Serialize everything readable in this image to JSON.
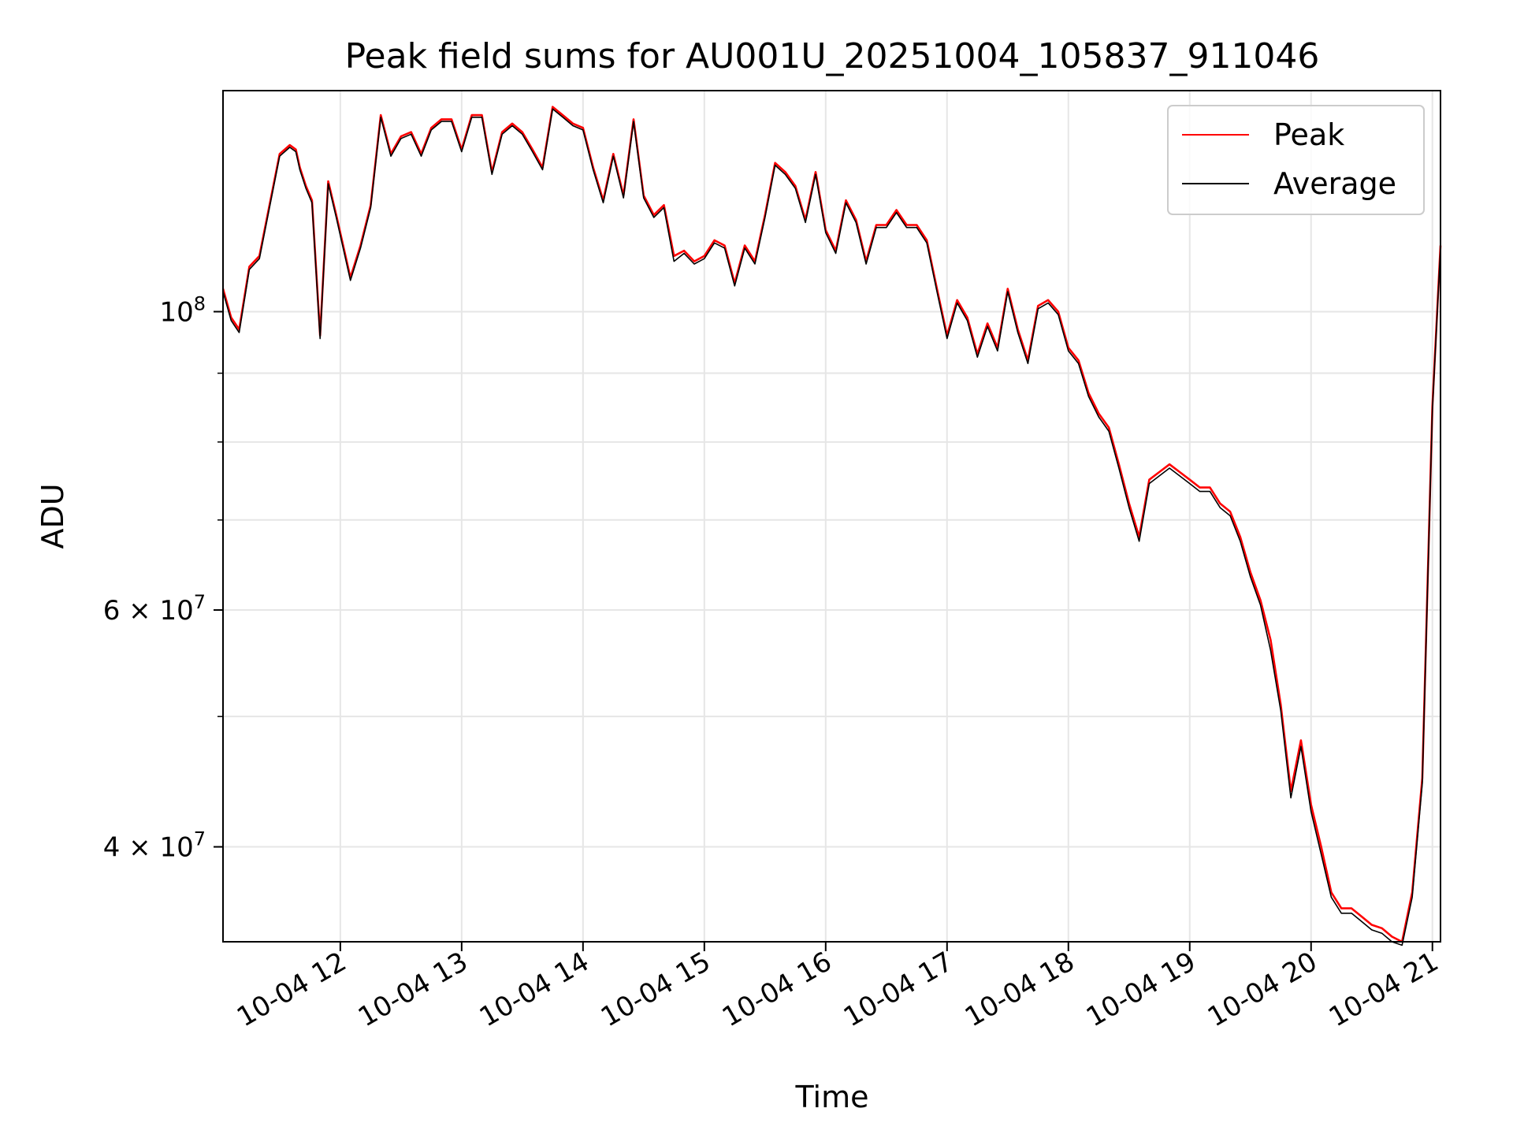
{
  "chart_data": {
    "type": "line",
    "title": "Peak field sums for AU001U_20251004_105837_911046",
    "xlabel": "Time",
    "ylabel": "ADU",
    "yscale": "log",
    "xlim": [
      "2025-10-04 11:02",
      "2025-10-04 21:04"
    ],
    "ylim": [
      34000000,
      146000000
    ],
    "x_tick_labels": [
      "10-04 12",
      "10-04 13",
      "10-04 14",
      "10-04 15",
      "10-04 16",
      "10-04 17",
      "10-04 18",
      "10-04 19",
      "10-04 20",
      "10-04 21"
    ],
    "y_tick_labels": [
      {
        "value": 100000000,
        "label": "10",
        "exponent": "8"
      },
      {
        "value": 60000000,
        "label": "6 × 10",
        "exponent": "7"
      },
      {
        "value": 40000000,
        "label": "4 × 10",
        "exponent": "7"
      }
    ],
    "grid": true,
    "legend_position": "upper right",
    "series": [
      {
        "name": "Peak",
        "color": "#ff0000",
        "x": [
          "2025-10-04 11:02",
          "2025-10-04 11:06",
          "2025-10-04 11:10",
          "2025-10-04 11:15",
          "2025-10-04 11:20",
          "2025-10-04 11:25",
          "2025-10-04 11:30",
          "2025-10-04 11:35",
          "2025-10-04 11:38",
          "2025-10-04 11:40",
          "2025-10-04 11:43",
          "2025-10-04 11:46",
          "2025-10-04 11:50",
          "2025-10-04 11:54",
          "2025-10-04 11:58",
          "2025-10-04 12:05",
          "2025-10-04 12:10",
          "2025-10-04 12:15",
          "2025-10-04 12:20",
          "2025-10-04 12:25",
          "2025-10-04 12:30",
          "2025-10-04 12:35",
          "2025-10-04 12:40",
          "2025-10-04 12:45",
          "2025-10-04 12:50",
          "2025-10-04 12:55",
          "2025-10-04 13:00",
          "2025-10-04 13:05",
          "2025-10-04 13:10",
          "2025-10-04 13:15",
          "2025-10-04 13:20",
          "2025-10-04 13:25",
          "2025-10-04 13:30",
          "2025-10-04 13:35",
          "2025-10-04 13:40",
          "2025-10-04 13:45",
          "2025-10-04 13:50",
          "2025-10-04 13:55",
          "2025-10-04 14:00",
          "2025-10-04 14:05",
          "2025-10-04 14:10",
          "2025-10-04 14:15",
          "2025-10-04 14:20",
          "2025-10-04 14:25",
          "2025-10-04 14:30",
          "2025-10-04 14:35",
          "2025-10-04 14:40",
          "2025-10-04 14:45",
          "2025-10-04 14:50",
          "2025-10-04 14:55",
          "2025-10-04 15:00",
          "2025-10-04 15:05",
          "2025-10-04 15:10",
          "2025-10-04 15:15",
          "2025-10-04 15:20",
          "2025-10-04 15:25",
          "2025-10-04 15:30",
          "2025-10-04 15:35",
          "2025-10-04 15:40",
          "2025-10-04 15:45",
          "2025-10-04 15:50",
          "2025-10-04 15:55",
          "2025-10-04 16:00",
          "2025-10-04 16:05",
          "2025-10-04 16:10",
          "2025-10-04 16:15",
          "2025-10-04 16:20",
          "2025-10-04 16:25",
          "2025-10-04 16:30",
          "2025-10-04 16:35",
          "2025-10-04 16:40",
          "2025-10-04 16:45",
          "2025-10-04 16:50",
          "2025-10-04 16:55",
          "2025-10-04 17:00",
          "2025-10-04 17:05",
          "2025-10-04 17:10",
          "2025-10-04 17:15",
          "2025-10-04 17:20",
          "2025-10-04 17:25",
          "2025-10-04 17:30",
          "2025-10-04 17:35",
          "2025-10-04 17:40",
          "2025-10-04 17:45",
          "2025-10-04 17:50",
          "2025-10-04 17:55",
          "2025-10-04 18:00",
          "2025-10-04 18:05",
          "2025-10-04 18:10",
          "2025-10-04 18:15",
          "2025-10-04 18:20",
          "2025-10-04 18:25",
          "2025-10-04 18:30",
          "2025-10-04 18:35",
          "2025-10-04 18:40",
          "2025-10-04 18:45",
          "2025-10-04 18:50",
          "2025-10-04 18:55",
          "2025-10-04 19:00",
          "2025-10-04 19:05",
          "2025-10-04 19:10",
          "2025-10-04 19:15",
          "2025-10-04 19:20",
          "2025-10-04 19:25",
          "2025-10-04 19:30",
          "2025-10-04 19:35",
          "2025-10-04 19:40",
          "2025-10-04 19:45",
          "2025-10-04 19:50",
          "2025-10-04 19:55",
          "2025-10-04 20:00",
          "2025-10-04 20:05",
          "2025-10-04 20:10",
          "2025-10-04 20:15",
          "2025-10-04 20:20",
          "2025-10-04 20:25",
          "2025-10-04 20:30",
          "2025-10-04 20:35",
          "2025-10-04 20:40",
          "2025-10-04 20:45",
          "2025-10-04 20:50",
          "2025-10-04 20:55",
          "2025-10-04 21:00",
          "2025-10-04 21:04"
        ],
        "values": [
          104000000,
          99000000,
          97000000,
          108000000,
          110000000,
          120000000,
          131000000,
          133000000,
          132000000,
          128000000,
          124000000,
          121000000,
          96000000,
          125000000,
          118000000,
          106000000,
          112000000,
          120000000,
          140000000,
          131000000,
          135000000,
          136000000,
          131000000,
          137000000,
          139000000,
          139000000,
          132000000,
          140000000,
          140000000,
          127000000,
          136000000,
          138000000,
          136000000,
          132000000,
          128000000,
          142000000,
          140000000,
          138000000,
          137000000,
          128000000,
          121000000,
          131000000,
          122000000,
          139000000,
          122000000,
          118000000,
          120000000,
          110000000,
          111000000,
          109000000,
          110000000,
          113000000,
          112000000,
          105000000,
          112000000,
          109000000,
          118000000,
          129000000,
          127000000,
          124000000,
          117000000,
          127000000,
          115000000,
          111000000,
          121000000,
          117000000,
          109000000,
          116000000,
          116000000,
          119000000,
          116000000,
          116000000,
          113000000,
          104000000,
          96000000,
          102000000,
          99000000,
          93000000,
          98000000,
          94000000,
          104000000,
          97000000,
          92000000,
          101000000,
          102000000,
          100000000,
          94000000,
          92000000,
          87000000,
          84000000,
          82000000,
          77000000,
          72000000,
          68000000,
          75000000,
          76000000,
          77000000,
          76000000,
          75000000,
          74000000,
          74000000,
          72000000,
          71000000,
          68000000,
          64000000,
          61000000,
          57000000,
          51000000,
          44000000,
          48000000,
          43000000,
          40000000,
          37000000,
          36000000,
          36000000,
          35500000,
          35000000,
          34800000,
          34300000,
          34000000,
          37000000,
          45000000,
          85000000,
          112000000
        ],
        "note_omit": null
      },
      {
        "name": "Average",
        "color": "#000000",
        "x": [
          "2025-10-04 11:02",
          "2025-10-04 11:06",
          "2025-10-04 11:10",
          "2025-10-04 11:15",
          "2025-10-04 11:20",
          "2025-10-04 11:25",
          "2025-10-04 11:30",
          "2025-10-04 11:35",
          "2025-10-04 11:38",
          "2025-10-04 11:40",
          "2025-10-04 11:43",
          "2025-10-04 11:46",
          "2025-10-04 11:50",
          "2025-10-04 11:54",
          "2025-10-04 11:58",
          "2025-10-04 12:05",
          "2025-10-04 12:10",
          "2025-10-04 12:15",
          "2025-10-04 12:20",
          "2025-10-04 12:25",
          "2025-10-04 12:30",
          "2025-10-04 12:35",
          "2025-10-04 12:40",
          "2025-10-04 12:45",
          "2025-10-04 12:50",
          "2025-10-04 12:55",
          "2025-10-04 13:00",
          "2025-10-04 13:05",
          "2025-10-04 13:10",
          "2025-10-04 13:15",
          "2025-10-04 13:20",
          "2025-10-04 13:25",
          "2025-10-04 13:30",
          "2025-10-04 13:35",
          "2025-10-04 13:40",
          "2025-10-04 13:45",
          "2025-10-04 13:50",
          "2025-10-04 13:55",
          "2025-10-04 14:00",
          "2025-10-04 14:05",
          "2025-10-04 14:10",
          "2025-10-04 14:15",
          "2025-10-04 14:20",
          "2025-10-04 14:25",
          "2025-10-04 14:30",
          "2025-10-04 14:35",
          "2025-10-04 14:40",
          "2025-10-04 14:45",
          "2025-10-04 14:50",
          "2025-10-04 14:55",
          "2025-10-04 15:00",
          "2025-10-04 15:05",
          "2025-10-04 15:10",
          "2025-10-04 15:15",
          "2025-10-04 15:20",
          "2025-10-04 15:25",
          "2025-10-04 15:30",
          "2025-10-04 15:35",
          "2025-10-04 15:40",
          "2025-10-04 15:45",
          "2025-10-04 15:50",
          "2025-10-04 15:55",
          "2025-10-04 16:00",
          "2025-10-04 16:05",
          "2025-10-04 16:10",
          "2025-10-04 16:15",
          "2025-10-04 16:20",
          "2025-10-04 16:25",
          "2025-10-04 16:30",
          "2025-10-04 16:35",
          "2025-10-04 16:40",
          "2025-10-04 16:45",
          "2025-10-04 16:50",
          "2025-10-04 16:55",
          "2025-10-04 17:00",
          "2025-10-04 17:05",
          "2025-10-04 17:10",
          "2025-10-04 17:15",
          "2025-10-04 17:20",
          "2025-10-04 17:25",
          "2025-10-04 17:30",
          "2025-10-04 17:35",
          "2025-10-04 17:40",
          "2025-10-04 17:45",
          "2025-10-04 17:50",
          "2025-10-04 17:55",
          "2025-10-04 18:00",
          "2025-10-04 18:05",
          "2025-10-04 18:10",
          "2025-10-04 18:15",
          "2025-10-04 18:20",
          "2025-10-04 18:25",
          "2025-10-04 18:30",
          "2025-10-04 18:35",
          "2025-10-04 18:40",
          "2025-10-04 18:45",
          "2025-10-04 18:50",
          "2025-10-04 18:55",
          "2025-10-04 19:00",
          "2025-10-04 19:05",
          "2025-10-04 19:10",
          "2025-10-04 19:15",
          "2025-10-04 19:20",
          "2025-10-04 19:25",
          "2025-10-04 19:30",
          "2025-10-04 19:35",
          "2025-10-04 19:40",
          "2025-10-04 19:45",
          "2025-10-04 19:50",
          "2025-10-04 19:55",
          "2025-10-04 20:00",
          "2025-10-04 20:05",
          "2025-10-04 20:10",
          "2025-10-04 20:15",
          "2025-10-04 20:20",
          "2025-10-04 20:25",
          "2025-10-04 20:30",
          "2025-10-04 20:35",
          "2025-10-04 20:40",
          "2025-10-04 20:45",
          "2025-10-04 20:50",
          "2025-10-04 20:55",
          "2025-10-04 21:00",
          "2025-10-04 21:04"
        ],
        "values": [
          103500000,
          98500000,
          96500000,
          107500000,
          109500000,
          119500000,
          130500000,
          132500000,
          131500000,
          127500000,
          123500000,
          120500000,
          95500000,
          124500000,
          117500000,
          105500000,
          111500000,
          119500000,
          139500000,
          130500000,
          134500000,
          135500000,
          130500000,
          136500000,
          138500000,
          138500000,
          131500000,
          139500000,
          139500000,
          126500000,
          135500000,
          137500000,
          135500000,
          131500000,
          127500000,
          141500000,
          139500000,
          137500000,
          136500000,
          127500000,
          120500000,
          130500000,
          121500000,
          138500000,
          121500000,
          117500000,
          119500000,
          109000000,
          110500000,
          108500000,
          109500000,
          112500000,
          111500000,
          104500000,
          111500000,
          108500000,
          117500000,
          128500000,
          126500000,
          123500000,
          116500000,
          126500000,
          114500000,
          110500000,
          120500000,
          116500000,
          108500000,
          115500000,
          115500000,
          118500000,
          115500000,
          115500000,
          112500000,
          103500000,
          95500000,
          101500000,
          98500000,
          92500000,
          97500000,
          93500000,
          103500000,
          96500000,
          91500000,
          100500000,
          101500000,
          99500000,
          93500000,
          91500000,
          86500000,
          83500000,
          81500000,
          76500000,
          71500000,
          67500000,
          74500000,
          75500000,
          76500000,
          75500000,
          74500000,
          73500000,
          73500000,
          71500000,
          70500000,
          67500000,
          63500000,
          60500000,
          56000000,
          50500000,
          43500000,
          47500000,
          42500000,
          39500000,
          36700000,
          35700000,
          35700000,
          35200000,
          34700000,
          34500000,
          34000000,
          33800000,
          36700000,
          44600000,
          84500000,
          111500000
        ]
      }
    ]
  }
}
